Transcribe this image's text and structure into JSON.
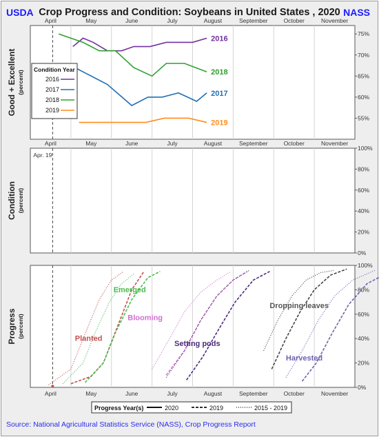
{
  "header": {
    "left_logo": "USDA",
    "title": "Crop Progress and Condition: Soybeans in United States , 2020",
    "right_logo": "NASS"
  },
  "source": "Source: National Agricultural Statistics Service (NASS), Crop Progress Report",
  "chart_data": [
    {
      "type": "line",
      "panel": "top",
      "ylabel": "Good + Excellent",
      "ylabel_unit": "(percent)",
      "x_ticks": [
        "April",
        "May",
        "June",
        "July",
        "August",
        "September",
        "October",
        "November"
      ],
      "y_ticks": [
        "55%",
        "60%",
        "65%",
        "70%",
        "75%"
      ],
      "ylim": [
        50,
        77
      ],
      "legend_title": "Condition Year",
      "legend_position": "left",
      "series": [
        {
          "name": "2016",
          "color": "#7030a0",
          "x": [
            1.05,
            1.3,
            1.55,
            1.9,
            2.25,
            2.55,
            2.95,
            3.35,
            3.65,
            4.0,
            4.35
          ],
          "y": [
            72,
            74,
            73,
            71,
            71,
            72,
            72,
            73,
            73,
            73,
            74
          ],
          "end_label": "2016"
        },
        {
          "name": "2017",
          "color": "#1f6fb5",
          "x": [
            0.65,
            1.1,
            1.9,
            2.5,
            2.9,
            3.25,
            3.65,
            4.1,
            4.35
          ],
          "y": [
            66,
            67,
            63,
            58,
            60,
            60,
            61,
            59,
            61
          ],
          "end_label": "2017"
        },
        {
          "name": "2018",
          "color": "#2ea02e",
          "x": [
            0.7,
            1.3,
            1.7,
            2.1,
            2.55,
            3.0,
            3.35,
            3.8,
            4.35
          ],
          "y": [
            75,
            73,
            71,
            71,
            67,
            65,
            68,
            68,
            66
          ],
          "end_label": "2018"
        },
        {
          "name": "2019",
          "color": "#ff8c1a",
          "x": [
            1.2,
            1.45,
            2.5,
            2.85,
            3.3,
            3.9,
            4.35
          ],
          "y": [
            54,
            54,
            54,
            54,
            55,
            55,
            54
          ],
          "end_label": "2019"
        }
      ]
    },
    {
      "type": "line",
      "panel": "middle",
      "ylabel": "Condition",
      "ylabel_unit": "(percent)",
      "x_ticks": [
        "April",
        "May",
        "June",
        "July",
        "August",
        "September",
        "October",
        "November"
      ],
      "y_ticks": [
        "0%",
        "20%",
        "40%",
        "60%",
        "80%",
        "100%"
      ],
      "ylim": [
        0,
        100
      ],
      "annotation": "Apr. 19",
      "series": []
    },
    {
      "type": "line",
      "panel": "bottom",
      "ylabel": "Progress",
      "ylabel_unit": "(percent)",
      "x_ticks": [
        "April",
        "May",
        "June",
        "July",
        "August",
        "September",
        "October",
        "November"
      ],
      "y_ticks": [
        "0%",
        "20%",
        "40%",
        "60%",
        "80%",
        "100%"
      ],
      "ylim": [
        0,
        100
      ],
      "legend_title": "Progress Year(s)",
      "legend_entries": [
        "2020",
        "2019",
        "2015 - 2019"
      ],
      "stage_labels": [
        {
          "text": "Planted",
          "color": "#c0504d"
        },
        {
          "text": "Emerged",
          "color": "#4cbb4c"
        },
        {
          "text": "Blooming",
          "color": "#d070d0"
        },
        {
          "text": "Setting pods",
          "color": "#4b2a7a"
        },
        {
          "text": "Dropping leaves",
          "color": "#555555"
        },
        {
          "text": "Harvested",
          "color": "#7060b0"
        }
      ],
      "series": [
        {
          "name": "Planted 2019",
          "style": "dashed",
          "color": "#c0504d",
          "x": [
            1.0,
            1.5,
            1.8,
            2.15,
            2.5,
            2.8
          ],
          "y": [
            3,
            9,
            20,
            50,
            80,
            95
          ]
        },
        {
          "name": "Planted 2015-2019",
          "style": "dotted",
          "color": "#c0504d",
          "x": [
            0.45,
            1.0,
            1.4,
            1.7,
            2.0,
            2.3
          ],
          "y": [
            2,
            15,
            48,
            72,
            88,
            95
          ]
        },
        {
          "name": "Emerged 2019",
          "style": "dashed",
          "color": "#4cbb4c",
          "x": [
            1.35,
            1.8,
            2.1,
            2.5,
            2.9,
            3.2
          ],
          "y": [
            4,
            20,
            45,
            72,
            90,
            95
          ]
        },
        {
          "name": "Emerged 2015-2019",
          "style": "dotted",
          "color": "#4cbb4c",
          "x": [
            0.8,
            1.3,
            1.6,
            1.95,
            2.25,
            2.55
          ],
          "y": [
            3,
            20,
            45,
            70,
            85,
            93
          ]
        },
        {
          "name": "Blooming 2019",
          "style": "dashed",
          "color": "#d070d0",
          "x": [
            3.35,
            3.8,
            4.2,
            4.6,
            5.0,
            5.35
          ],
          "y": [
            10,
            30,
            55,
            75,
            88,
            95
          ]
        },
        {
          "name": "Blooming 2015-2019",
          "style": "dotted",
          "color": "#d070d0",
          "x": [
            3.0,
            3.4,
            3.8,
            4.2,
            4.6,
            4.95
          ],
          "y": [
            15,
            38,
            62,
            78,
            88,
            95
          ]
        },
        {
          "name": "Setting pods 2019",
          "style": "dashed",
          "color": "#4b2a7a",
          "x": [
            3.85,
            4.25,
            4.65,
            5.05,
            5.5,
            5.9
          ],
          "y": [
            6,
            25,
            48,
            70,
            88,
            95
          ]
        },
        {
          "name": "Setting pods 2015-2019",
          "style": "dotted",
          "color": "#4b2a7a",
          "x": [
            3.35,
            3.8,
            4.2,
            4.6,
            5.0,
            5.4
          ],
          "y": [
            8,
            30,
            55,
            75,
            88,
            96
          ]
        },
        {
          "name": "Dropping leaves 2019",
          "style": "dashed",
          "color": "#444444",
          "x": [
            5.95,
            6.3,
            6.65,
            7.0,
            7.4,
            7.8
          ],
          "y": [
            15,
            40,
            62,
            80,
            92,
            97
          ]
        },
        {
          "name": "Dropping leaves 2015-2019",
          "style": "dotted",
          "color": "#444444",
          "x": [
            5.75,
            6.1,
            6.45,
            6.8,
            7.15,
            7.5
          ],
          "y": [
            30,
            55,
            75,
            88,
            94,
            96
          ]
        },
        {
          "name": "Harvested 2019",
          "style": "dashed",
          "color": "#7060b0",
          "x": [
            6.7,
            7.05,
            7.45,
            7.85,
            8.3,
            8.7
          ],
          "y": [
            5,
            20,
            45,
            68,
            85,
            92
          ]
        },
        {
          "name": "Harvested 2015-2019",
          "style": "dotted",
          "color": "#7060b0",
          "x": [
            6.3,
            6.7,
            7.1,
            7.5,
            7.95,
            8.5
          ],
          "y": [
            8,
            30,
            55,
            75,
            88,
            96
          ]
        }
      ]
    }
  ]
}
